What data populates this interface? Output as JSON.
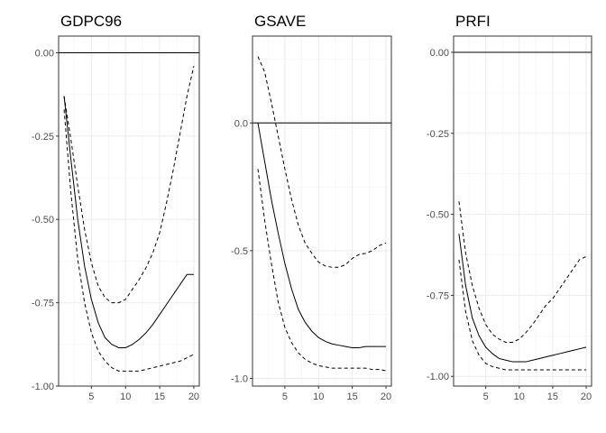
{
  "chart_data": [
    {
      "type": "line",
      "title": "GDPC96",
      "xlabel": "",
      "ylabel": "",
      "xlim": [
        0.2,
        20.8
      ],
      "ylim": [
        -1.0,
        0.05
      ],
      "xticks": [
        5,
        10,
        15,
        20
      ],
      "yticks": [
        0.0,
        -0.25,
        -0.5,
        -0.75,
        -1.0
      ],
      "ytick_labels": [
        "0.00",
        "-0.25",
        "-0.50",
        "-0.75",
        "-1.00"
      ],
      "grid": true,
      "x": [
        1,
        2,
        3,
        4,
        5,
        6,
        7,
        8,
        9,
        10,
        11,
        12,
        13,
        14,
        15,
        16,
        17,
        18,
        19,
        20
      ],
      "series": [
        {
          "role": "estimate",
          "style": "solid",
          "values": [
            -0.13,
            -0.32,
            -0.5,
            -0.64,
            -0.74,
            -0.81,
            -0.855,
            -0.875,
            -0.885,
            -0.885,
            -0.875,
            -0.86,
            -0.84,
            -0.815,
            -0.785,
            -0.755,
            -0.725,
            -0.695,
            -0.665,
            -0.665
          ]
        },
        {
          "role": "upper",
          "style": "dashed",
          "values": [
            -0.13,
            -0.26,
            -0.4,
            -0.53,
            -0.63,
            -0.7,
            -0.735,
            -0.75,
            -0.75,
            -0.74,
            -0.71,
            -0.68,
            -0.645,
            -0.6,
            -0.54,
            -0.45,
            -0.35,
            -0.24,
            -0.13,
            -0.04
          ]
        },
        {
          "role": "lower",
          "style": "dashed",
          "values": [
            -0.17,
            -0.42,
            -0.62,
            -0.75,
            -0.84,
            -0.895,
            -0.925,
            -0.945,
            -0.955,
            -0.955,
            -0.955,
            -0.955,
            -0.95,
            -0.945,
            -0.94,
            -0.935,
            -0.93,
            -0.925,
            -0.915,
            -0.905
          ]
        }
      ],
      "hline": 0
    },
    {
      "type": "line",
      "title": "GSAVE",
      "xlabel": "",
      "ylabel": "",
      "xlim": [
        0.2,
        20.8
      ],
      "ylim": [
        -1.03,
        0.34
      ],
      "xticks": [
        5,
        10,
        15,
        20
      ],
      "yticks": [
        0.0,
        -0.5,
        -1.0
      ],
      "ytick_labels": [
        "0.0",
        "-0.5",
        "-1.0"
      ],
      "grid": true,
      "x": [
        1,
        2,
        3,
        4,
        5,
        6,
        7,
        8,
        9,
        10,
        11,
        12,
        13,
        14,
        15,
        16,
        17,
        18,
        19,
        20
      ],
      "series": [
        {
          "role": "estimate",
          "style": "solid",
          "values": [
            0.0,
            -0.15,
            -0.3,
            -0.43,
            -0.55,
            -0.65,
            -0.73,
            -0.78,
            -0.815,
            -0.84,
            -0.855,
            -0.865,
            -0.87,
            -0.875,
            -0.88,
            -0.88,
            -0.875,
            -0.875,
            -0.875,
            -0.875
          ]
        },
        {
          "role": "upper",
          "style": "dashed",
          "values": [
            0.26,
            0.2,
            0.08,
            -0.05,
            -0.18,
            -0.3,
            -0.4,
            -0.47,
            -0.51,
            -0.545,
            -0.56,
            -0.565,
            -0.565,
            -0.555,
            -0.53,
            -0.515,
            -0.51,
            -0.5,
            -0.48,
            -0.47
          ]
        },
        {
          "role": "lower",
          "style": "dashed",
          "values": [
            -0.18,
            -0.38,
            -0.55,
            -0.7,
            -0.8,
            -0.86,
            -0.9,
            -0.925,
            -0.94,
            -0.95,
            -0.955,
            -0.96,
            -0.96,
            -0.96,
            -0.96,
            -0.96,
            -0.96,
            -0.965,
            -0.965,
            -0.97
          ]
        }
      ],
      "hline": 0
    },
    {
      "type": "line",
      "title": "PRFI",
      "xlabel": "",
      "ylabel": "",
      "xlim": [
        0.2,
        20.8
      ],
      "ylim": [
        -1.03,
        0.05
      ],
      "xticks": [
        5,
        10,
        15,
        20
      ],
      "yticks": [
        0.0,
        -0.25,
        -0.5,
        -0.75,
        -1.0
      ],
      "ytick_labels": [
        "0.00",
        "-0.25",
        "-0.50",
        "-0.75",
        "-1.00"
      ],
      "grid": true,
      "x": [
        1,
        2,
        3,
        4,
        5,
        6,
        7,
        8,
        9,
        10,
        11,
        12,
        13,
        14,
        15,
        16,
        17,
        18,
        19,
        20
      ],
      "series": [
        {
          "role": "estimate",
          "style": "solid",
          "values": [
            -0.56,
            -0.72,
            -0.82,
            -0.875,
            -0.91,
            -0.93,
            -0.945,
            -0.95,
            -0.955,
            -0.955,
            -0.955,
            -0.95,
            -0.945,
            -0.94,
            -0.935,
            -0.93,
            -0.925,
            -0.92,
            -0.915,
            -0.91
          ]
        },
        {
          "role": "upper",
          "style": "dashed",
          "values": [
            -0.46,
            -0.62,
            -0.72,
            -0.79,
            -0.84,
            -0.87,
            -0.885,
            -0.895,
            -0.895,
            -0.885,
            -0.865,
            -0.84,
            -0.81,
            -0.78,
            -0.76,
            -0.73,
            -0.7,
            -0.67,
            -0.64,
            -0.63
          ]
        },
        {
          "role": "lower",
          "style": "dashed",
          "values": [
            -0.64,
            -0.8,
            -0.89,
            -0.935,
            -0.96,
            -0.97,
            -0.975,
            -0.98,
            -0.98,
            -0.98,
            -0.98,
            -0.98,
            -0.98,
            -0.98,
            -0.98,
            -0.98,
            -0.98,
            -0.98,
            -0.98,
            -0.98
          ]
        }
      ],
      "hline": 0
    }
  ]
}
